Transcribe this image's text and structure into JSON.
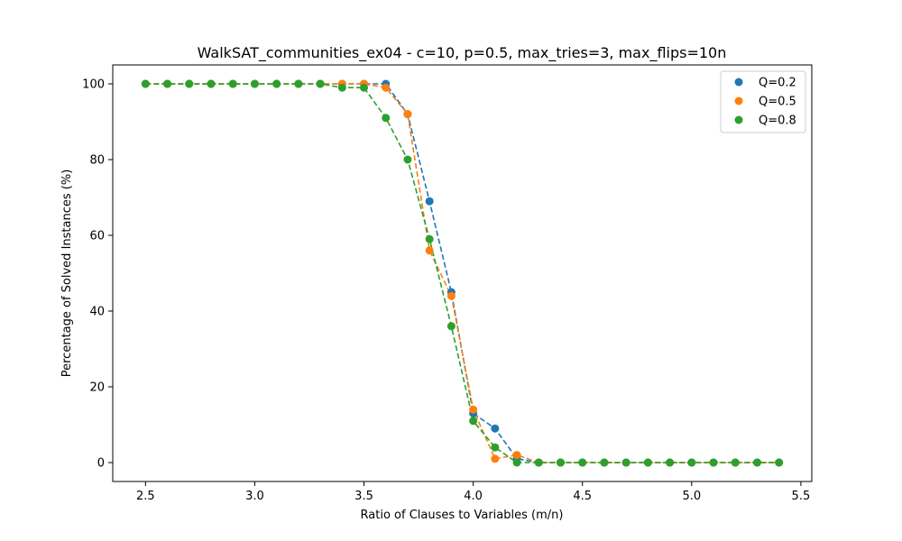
{
  "chart_data": {
    "type": "scatter",
    "title": "WalkSAT_communities_ex04 - c=10, p=0.5, max_tries=3, max_flips=10n",
    "xlabel": "Ratio of Clauses to Variables (m/n)",
    "ylabel": "Percentage of Solved Instances (%)",
    "xlim": [
      2.35,
      5.55
    ],
    "ylim": [
      -5,
      105
    ],
    "xticks": [
      2.5,
      3.0,
      3.5,
      4.0,
      4.5,
      5.0,
      5.5
    ],
    "xtick_labels": [
      "2.5",
      "3.0",
      "3.5",
      "4.0",
      "4.5",
      "5.0",
      "5.5"
    ],
    "yticks": [
      0,
      20,
      40,
      60,
      80,
      100
    ],
    "ytick_labels": [
      "0",
      "20",
      "40",
      "60",
      "80",
      "100"
    ],
    "grid": false,
    "legend_position": "top-right",
    "x": [
      2.5,
      2.6,
      2.7,
      2.8,
      2.9,
      3.0,
      3.1,
      3.2,
      3.3,
      3.4,
      3.5,
      3.6,
      3.7,
      3.8,
      3.9,
      4.0,
      4.1,
      4.2,
      4.3,
      4.4,
      4.5,
      4.6,
      4.7,
      4.8,
      4.9,
      5.0,
      5.1,
      5.2,
      5.3,
      5.4
    ],
    "series": [
      {
        "name": "Q=0.2",
        "color": "#1f77b4",
        "values": [
          100,
          100,
          100,
          100,
          100,
          100,
          100,
          100,
          100,
          100,
          100,
          100,
          92,
          69,
          45,
          13,
          9,
          1,
          0,
          0,
          0,
          0,
          0,
          0,
          0,
          0,
          0,
          0,
          0,
          0
        ]
      },
      {
        "name": "Q=0.5",
        "color": "#ff7f0e",
        "values": [
          100,
          100,
          100,
          100,
          100,
          100,
          100,
          100,
          100,
          100,
          100,
          99,
          92,
          56,
          44,
          14,
          1,
          2,
          0,
          0,
          0,
          0,
          0,
          0,
          0,
          0,
          0,
          0,
          0,
          0
        ]
      },
      {
        "name": "Q=0.8",
        "color": "#2ca02c",
        "values": [
          100,
          100,
          100,
          100,
          100,
          100,
          100,
          100,
          100,
          99,
          99,
          91,
          80,
          59,
          36,
          11,
          4,
          0,
          0,
          0,
          0,
          0,
          0,
          0,
          0,
          0,
          0,
          0,
          0,
          0
        ]
      }
    ]
  }
}
